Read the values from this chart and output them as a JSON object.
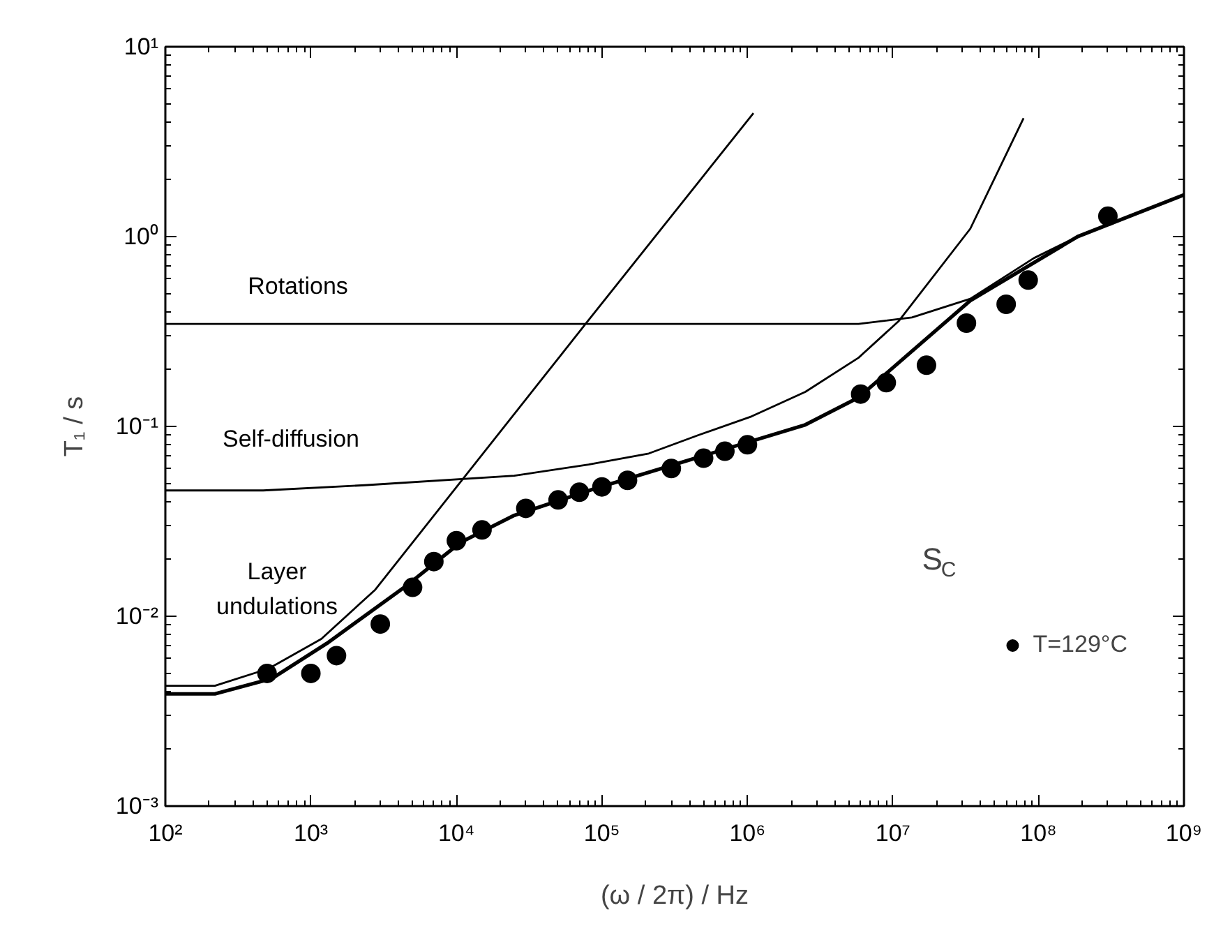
{
  "chart_data": {
    "type": "line",
    "xlabel": "(ω / 2π) / Hz",
    "ylabel": "T₁ / s",
    "log": "xy",
    "grid": false,
    "legend": "bottom right",
    "xlim": [
      100,
      1000000000
    ],
    "ylim": [
      0.001,
      10
    ],
    "xticks": [
      {
        "value": 100,
        "label": "10²"
      },
      {
        "value": 1000,
        "label": "10³"
      },
      {
        "value": 10000,
        "label": "10⁴"
      },
      {
        "value": 100000,
        "label": "10⁵"
      },
      {
        "value": 1000000,
        "label": "10⁶"
      },
      {
        "value": 10000000,
        "label": "10⁷"
      },
      {
        "value": 100000000,
        "label": "10⁸"
      },
      {
        "value": 1000000000,
        "label": "10⁹"
      }
    ],
    "yticks": [
      {
        "value": 0.001,
        "label": "10⁻³"
      },
      {
        "value": 0.01,
        "label": "10⁻²"
      },
      {
        "value": 0.1,
        "label": "10⁻¹"
      },
      {
        "value": 1,
        "label": "10⁰"
      },
      {
        "value": 10,
        "label": "10¹"
      }
    ],
    "series": [
      {
        "type": "scatter",
        "name": "T=129°C",
        "color": "#000000",
        "marker": "circle",
        "x": [
          500,
          1000,
          1500,
          3000,
          5000,
          7000,
          10000,
          15000,
          30000,
          50000,
          70000,
          100000,
          150000,
          300000,
          500000,
          700000,
          1000000,
          6000000,
          9000000,
          17000000,
          32000000,
          60000000,
          85000000,
          300000000
        ],
        "values": [
          0.005,
          0.005,
          0.0062,
          0.0091,
          0.0142,
          0.0194,
          0.025,
          0.0285,
          0.037,
          0.041,
          0.045,
          0.048,
          0.052,
          0.06,
          0.068,
          0.074,
          0.08,
          0.148,
          0.17,
          0.21,
          0.35,
          0.44,
          0.59,
          1.28
        ]
      },
      {
        "color": "#000000",
        "line_style": "solid",
        "x": [
          100,
          219,
          540,
          1290,
          4600,
          10700,
          25000,
          89000,
          150000,
          2500000,
          5800000,
          34000000,
          186000000,
          1000000000
        ],
        "values": [
          0.0039,
          0.0039,
          0.0047,
          0.0072,
          0.0146,
          0.0245,
          0.034,
          0.047,
          0.053,
          0.102,
          0.142,
          0.46,
          1.0,
          1.66
        ]
      },
      {
        "name": "Layer undulations",
        "color": "#000000",
        "line_style": "solid",
        "x": [
          100,
          219,
          513,
          1180,
          2770,
          81000,
          1100000
        ],
        "values": [
          0.0043,
          0.0043,
          0.0053,
          0.0076,
          0.0138,
          0.363,
          4.47
        ]
      },
      {
        "name": "Self-diffusion",
        "color": "#000000",
        "line_style": "solid",
        "x": [
          100,
          470,
          2340,
          25000,
          81000,
          210000,
          460000,
          1070000,
          2500000,
          5800000,
          11000000,
          34000000,
          79000000
        ],
        "values": [
          0.046,
          0.046,
          0.049,
          0.055,
          0.063,
          0.072,
          0.09,
          0.113,
          0.152,
          0.23,
          0.36,
          1.1,
          4.2
        ]
      },
      {
        "name": "Rotations",
        "color": "#000000",
        "line_style": "solid",
        "x": [
          100,
          5800000,
          13500000,
          34000000,
          93000000,
          186000000,
          1000000000
        ],
        "values": [
          0.347,
          0.347,
          0.375,
          0.47,
          0.77,
          1.0,
          1.66
        ]
      }
    ],
    "annotations": [
      "S$_{C}$"
    ]
  }
}
